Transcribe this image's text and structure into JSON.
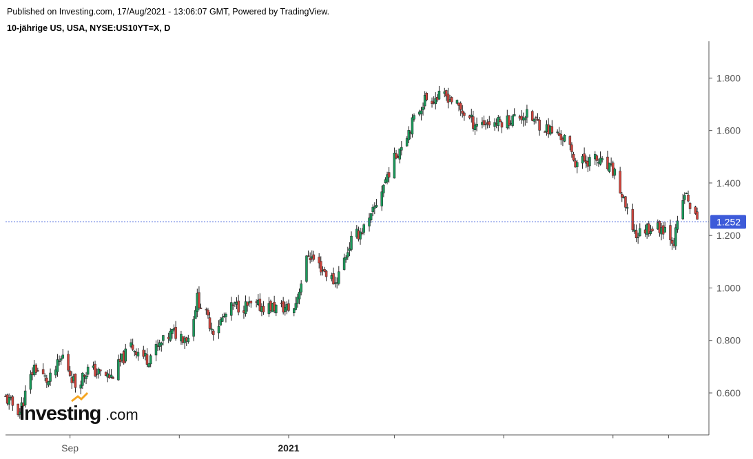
{
  "header": {
    "published": "Published on Investing.com, 17/Aug/2021 - 13:06:07 GMT, Powered by TradingView.",
    "instrument": "10-jährige US, USA, NYSE:US10YT=X, D"
  },
  "logo": {
    "main": "Investing",
    "suffix": ".com",
    "accent_color": "#f5a623"
  },
  "chart_data": {
    "type": "candlestick",
    "title": "10-jährige US, USA, NYSE:US10YT=X, D",
    "xlabel": "",
    "ylabel": "",
    "ylim": [
      0.44,
      1.94
    ],
    "y_ticks": [
      "1.800",
      "1.600",
      "1.400",
      "1.200",
      "1.000",
      "0.800",
      "0.600"
    ],
    "y_tick_values": [
      1.8,
      1.6,
      1.4,
      1.2,
      1.0,
      0.8,
      0.6
    ],
    "x_tick_labels": [
      "Sep",
      "2021"
    ],
    "x_range": [
      "2020-07-27",
      "2021-08-17"
    ],
    "date_ticks": [
      "2020-09-01",
      "2020-11-01",
      "2021-01-01",
      "2021-03-01",
      "2021-05-01",
      "2021-07-01",
      "2021-08-01"
    ],
    "last_price": 1.252,
    "last_price_label": "1.252",
    "up_color": "#1a9c5c",
    "down_color": "#d2443c",
    "wick_color": "#222222",
    "price_line_color": "#3d5bd9",
    "grid": false,
    "waypoints": {
      "dates": [
        "2020-07-27",
        "2020-08-04",
        "2020-08-12",
        "2020-08-20",
        "2020-08-28",
        "2020-09-04",
        "2020-09-11",
        "2020-09-24",
        "2020-10-05",
        "2020-10-14",
        "2020-10-28",
        "2020-11-06",
        "2020-11-11",
        "2020-11-20",
        "2020-12-01",
        "2020-12-18",
        "2021-01-04",
        "2021-01-12",
        "2021-01-27",
        "2021-02-05",
        "2021-02-15",
        "2021-02-25",
        "2021-03-05",
        "2021-03-18",
        "2021-03-31",
        "2021-04-14",
        "2021-04-28",
        "2021-05-13",
        "2021-05-27",
        "2021-06-04",
        "2021-06-10",
        "2021-06-21",
        "2021-07-02",
        "2021-07-08",
        "2021-07-14",
        "2021-07-20",
        "2021-07-30",
        "2021-08-04",
        "2021-08-10",
        "2021-08-17"
      ],
      "values": [
        0.58,
        0.53,
        0.7,
        0.64,
        0.74,
        0.63,
        0.69,
        0.66,
        0.78,
        0.73,
        0.83,
        0.81,
        0.96,
        0.84,
        0.93,
        0.93,
        0.92,
        1.13,
        1.02,
        1.18,
        1.25,
        1.43,
        1.55,
        1.72,
        1.73,
        1.63,
        1.63,
        1.66,
        1.6,
        1.57,
        1.48,
        1.49,
        1.44,
        1.3,
        1.2,
        1.23,
        1.23,
        1.18,
        1.36,
        1.252
      ]
    }
  }
}
